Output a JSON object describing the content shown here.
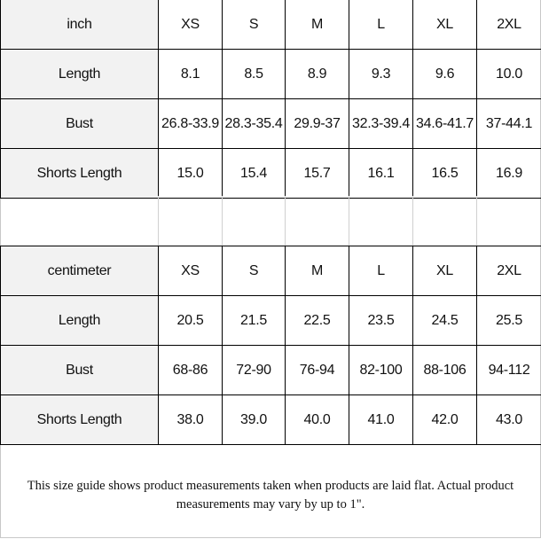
{
  "inch_table": {
    "header": [
      "inch",
      "XS",
      "S",
      "M",
      "L",
      "XL",
      "2XL"
    ],
    "rows": [
      [
        "Length",
        "8.1",
        "8.5",
        "8.9",
        "9.3",
        "9.6",
        "10.0"
      ],
      [
        "Bust",
        "26.8-33.9",
        "28.3-35.4",
        "29.9-37",
        "32.3-39.4",
        "34.6-41.7",
        "37-44.1"
      ],
      [
        "Shorts Length",
        "15.0",
        "15.4",
        "15.7",
        "16.1",
        "16.5",
        "16.9"
      ]
    ]
  },
  "cm_table": {
    "header": [
      "centimeter",
      "XS",
      "S",
      "M",
      "L",
      "XL",
      "2XL"
    ],
    "rows": [
      [
        "Length",
        "20.5",
        "21.5",
        "22.5",
        "23.5",
        "24.5",
        "25.5"
      ],
      [
        "Bust",
        "68-86",
        "72-90",
        "76-94",
        "82-100",
        "88-106",
        "94-112"
      ],
      [
        "Shorts Length",
        "38.0",
        "39.0",
        "40.0",
        "41.0",
        "42.0",
        "43.0"
      ]
    ]
  },
  "note": "This size guide shows product measurements taken when products are laid flat. Actual product measurements may vary by up to 1\"."
}
